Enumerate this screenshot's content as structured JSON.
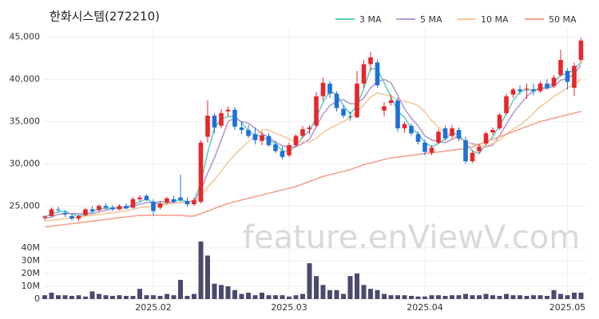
{
  "chart_data": {
    "type": "candlestick",
    "title": "한화시스템(272210)",
    "watermark": "feature.enViewV.com",
    "up_color": "#e8262b",
    "down_color": "#1f6fd8",
    "grid": true,
    "categories": [
      null,
      null,
      null,
      null,
      null,
      null,
      null,
      null,
      null,
      null,
      null,
      null,
      null,
      null,
      null,
      null,
      "2025.02",
      null,
      null,
      null,
      null,
      null,
      null,
      null,
      null,
      null,
      null,
      null,
      null,
      null,
      null,
      null,
      null,
      null,
      null,
      null,
      "2025.03",
      null,
      null,
      null,
      null,
      null,
      null,
      null,
      null,
      null,
      null,
      null,
      null,
      null,
      null,
      null,
      null,
      null,
      null,
      null,
      "2025.04",
      null,
      null,
      null,
      null,
      null,
      null,
      null,
      null,
      null,
      null,
      null,
      null,
      null,
      null,
      null,
      null,
      null,
      null,
      null,
      null,
      "2025.05",
      null,
      null
    ],
    "open": [
      23600,
      23800,
      24600,
      24200,
      23800,
      23500,
      23900,
      24600,
      24500,
      25000,
      24800,
      24600,
      25000,
      24800,
      25800,
      26200,
      25500,
      24800,
      25400,
      25800,
      26000,
      25600,
      25200,
      25500,
      33200,
      35700,
      34500,
      36200,
      36400,
      34300,
      34000,
      33500,
      32700,
      33300,
      32300,
      31500,
      31000,
      32200,
      33300,
      34100,
      34500,
      38000,
      39500,
      38300,
      36500,
      35600,
      35500,
      39500,
      41800,
      42000,
      36300,
      37200,
      37500,
      34200,
      34500,
      33500,
      32500,
      31300,
      32500,
      34200,
      33300,
      34000,
      32800,
      30300,
      31500,
      32400,
      33700,
      34200,
      36000,
      38200,
      38800,
      38800,
      38800,
      38600,
      39500,
      39200,
      40500,
      41000,
      39000,
      42300
    ],
    "high": [
      23900,
      24800,
      24900,
      24500,
      24100,
      24000,
      24800,
      25000,
      25200,
      25300,
      25100,
      25200,
      25300,
      26000,
      26300,
      26400,
      25800,
      25600,
      26100,
      26200,
      28700,
      26000,
      26000,
      32800,
      37500,
      36000,
      36500,
      36800,
      36700,
      35000,
      34600,
      34300,
      33800,
      33600,
      32700,
      32000,
      32500,
      33500,
      34500,
      34600,
      38500,
      40200,
      39800,
      38600,
      36900,
      36200,
      41000,
      42300,
      43300,
      42300,
      37300,
      38200,
      37800,
      35000,
      34800,
      33800,
      32900,
      32200,
      34100,
      34500,
      34600,
      34300,
      33200,
      31600,
      32400,
      33800,
      34300,
      36000,
      38300,
      39000,
      39300,
      39500,
      39500,
      39800,
      40000,
      40500,
      43500,
      41300,
      42000,
      44900
    ],
    "low": [
      23300,
      23700,
      24300,
      23700,
      23300,
      23200,
      23800,
      24200,
      24300,
      24600,
      24400,
      24500,
      24600,
      24700,
      25500,
      25600,
      23900,
      24600,
      25200,
      25300,
      25500,
      24900,
      25000,
      25300,
      32500,
      33600,
      34200,
      35600,
      34000,
      33500,
      33000,
      32300,
      32200,
      32000,
      31300,
      30500,
      30800,
      32000,
      33000,
      33500,
      34300,
      37500,
      37800,
      36200,
      35400,
      35100,
      35400,
      39000,
      41000,
      39000,
      35600,
      36900,
      33800,
      33700,
      33300,
      32300,
      31000,
      31000,
      32300,
      32800,
      33000,
      32700,
      30000,
      30100,
      31200,
      32200,
      33400,
      34000,
      35800,
      37800,
      38200,
      37700,
      38100,
      38400,
      38800,
      39000,
      40300,
      38800,
      38000,
      42000
    ],
    "close": [
      23750,
      24600,
      24500,
      24000,
      23500,
      23800,
      24600,
      24400,
      25000,
      24800,
      24600,
      25000,
      24700,
      25800,
      26000,
      25700,
      24400,
      25300,
      25900,
      25500,
      25700,
      25200,
      25700,
      32500,
      35700,
      34300,
      36000,
      36400,
      34400,
      34000,
      33300,
      32800,
      33400,
      32200,
      31500,
      30800,
      32200,
      33300,
      34100,
      34300,
      38000,
      39600,
      38300,
      36600,
      35700,
      35500,
      39500,
      41800,
      42600,
      39300,
      36800,
      37500,
      34200,
      34700,
      33600,
      32600,
      31400,
      31900,
      33800,
      33000,
      34200,
      33000,
      30300,
      31300,
      32000,
      33600,
      34000,
      35800,
      38000,
      38800,
      38600,
      38900,
      38600,
      39500,
      39000,
      40200,
      42300,
      39700,
      41600,
      44600
    ],
    "ylim": [
      22000,
      46000
    ],
    "yticks": [
      {
        "value": 25000,
        "label": "25,000"
      },
      {
        "value": 30000,
        "label": "30,000"
      },
      {
        "value": 35000,
        "label": "35,000"
      },
      {
        "value": 40000,
        "label": "40,000"
      },
      {
        "value": 45000,
        "label": "45,000"
      }
    ],
    "series": [
      {
        "name": "3 MA",
        "color": "#5ccfc4",
        "values": [
          23700,
          24000,
          24300,
          24400,
          24000,
          23800,
          24000,
          24300,
          24700,
          24700,
          24800,
          24800,
          24800,
          25200,
          25500,
          25800,
          25400,
          25200,
          25300,
          25600,
          25700,
          25500,
          25500,
          27800,
          31300,
          34200,
          35300,
          35600,
          35600,
          34900,
          33900,
          33400,
          33200,
          32800,
          32400,
          31500,
          31500,
          32100,
          33200,
          33900,
          35500,
          37300,
          38600,
          38200,
          36900,
          35900,
          36900,
          38900,
          41300,
          41200,
          39600,
          37900,
          36200,
          35500,
          34200,
          33600,
          32500,
          32000,
          32400,
          32900,
          33700,
          33400,
          32500,
          31500,
          31200,
          32300,
          33200,
          34500,
          35900,
          37500,
          38500,
          38800,
          38700,
          39000,
          39000,
          39600,
          40500,
          40700,
          41200,
          42000
        ]
      },
      {
        "name": "5 MA",
        "color": "#b49ad0",
        "values": [
          23500,
          23700,
          24000,
          24100,
          24100,
          24100,
          24100,
          24100,
          24300,
          24500,
          24700,
          24800,
          24800,
          25000,
          25200,
          25400,
          25400,
          25500,
          25500,
          25400,
          25400,
          25500,
          25600,
          26900,
          28900,
          30700,
          32800,
          35000,
          35400,
          35000,
          34800,
          34200,
          33600,
          33100,
          32600,
          32100,
          32000,
          32000,
          32400,
          32900,
          34400,
          35900,
          36900,
          37400,
          37600,
          37100,
          37100,
          37800,
          39000,
          39700,
          40000,
          39600,
          38100,
          36500,
          35400,
          34500,
          33300,
          32800,
          32700,
          32500,
          32900,
          33200,
          32500,
          32400,
          32200,
          32000,
          32200,
          33300,
          34700,
          36000,
          37000,
          38000,
          38600,
          38900,
          38900,
          39200,
          39900,
          40100,
          40600,
          41700
        ]
      },
      {
        "name": "10 MA",
        "color": "#f5c899",
        "values": [
          23200,
          23300,
          23400,
          23500,
          23600,
          23700,
          23800,
          23900,
          24000,
          24100,
          24200,
          24300,
          24400,
          24600,
          24800,
          24900,
          25000,
          25100,
          25200,
          25300,
          25400,
          25400,
          25500,
          26200,
          27200,
          28100,
          29100,
          30200,
          31100,
          31900,
          32600,
          33300,
          34000,
          34000,
          33600,
          33300,
          32900,
          32600,
          32600,
          32600,
          33000,
          33700,
          34200,
          34600,
          35000,
          35500,
          36200,
          37000,
          37900,
          38400,
          38200,
          38000,
          37600,
          37400,
          37200,
          36900,
          36100,
          35100,
          34300,
          33700,
          33400,
          33000,
          32600,
          32300,
          32100,
          32100,
          32400,
          32800,
          33500,
          34100,
          34600,
          35200,
          36000,
          36800,
          37300,
          38000,
          38500,
          39000,
          39400,
          40000
        ]
      },
      {
        "name": "50 MA",
        "color": "#f4a28e",
        "values": [
          22500,
          22600,
          22700,
          22800,
          22900,
          23000,
          23100,
          23200,
          23300,
          23400,
          23500,
          23600,
          23700,
          23800,
          23900,
          23900,
          23900,
          23900,
          23900,
          23900,
          23900,
          23800,
          23800,
          24100,
          24400,
          24700,
          25000,
          25300,
          25500,
          25700,
          25900,
          26100,
          26300,
          26500,
          26700,
          26900,
          27100,
          27300,
          27600,
          27900,
          28200,
          28500,
          28700,
          28900,
          29100,
          29300,
          29600,
          29900,
          30100,
          30300,
          30500,
          30700,
          30800,
          30900,
          31000,
          31100,
          31200,
          31300,
          31400,
          31500,
          31600,
          31700,
          31800,
          32000,
          32300,
          32600,
          32900,
          33200,
          33500,
          33800,
          34100,
          34400,
          34700,
          35000,
          35200,
          35400,
          35600,
          35800,
          36000,
          36200
        ]
      }
    ],
    "volume": {
      "color": "#4b4a6e",
      "values": [
        3000000,
        5000000,
        3000000,
        3000000,
        2500000,
        3000000,
        2000000,
        6000000,
        4000000,
        3000000,
        2500000,
        3000000,
        2500000,
        2500000,
        8000000,
        3000000,
        3000000,
        2500000,
        4000000,
        3000000,
        15000000,
        2500000,
        4000000,
        45000000,
        34000000,
        12000000,
        11000000,
        10000000,
        7000000,
        4000000,
        5000000,
        3000000,
        5000000,
        3000000,
        3000000,
        3000000,
        2000000,
        3000000,
        4000000,
        28000000,
        18000000,
        11000000,
        7000000,
        7000000,
        4000000,
        18000000,
        20000000,
        11000000,
        8000000,
        7000000,
        4000000,
        3000000,
        3000000,
        3000000,
        2500000,
        2000000,
        2000000,
        3000000,
        3000000,
        2500000,
        3000000,
        3000000,
        4000000,
        3000000,
        3000000,
        4000000,
        3000000,
        2500000,
        4000000,
        3000000,
        3000000,
        2500000,
        3000000,
        3000000,
        2500000,
        7000000,
        4000000,
        3000000,
        5000000,
        5000000
      ],
      "ylim": [
        0,
        48000000
      ],
      "yticks": [
        0,
        {
          "value": 10000000,
          "label": "10M"
        },
        {
          "value": 20000000,
          "label": "20M"
        },
        {
          "value": 30000000,
          "label": "30M"
        },
        {
          "value": 40000000,
          "label": "40M"
        }
      ]
    }
  }
}
